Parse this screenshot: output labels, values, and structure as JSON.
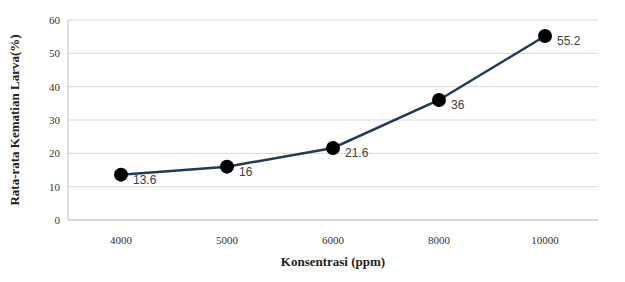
{
  "chart_data": {
    "type": "line",
    "x_label": "Konsentrasi (ppm)",
    "y_label": "Rata-rata Kematian Larva(%)",
    "categories": [
      "4000",
      "5000",
      "6000",
      "8000",
      "10000"
    ],
    "values": [
      13.6,
      16,
      21.6,
      36,
      55.2
    ],
    "color": "#1f3a5a",
    "marker": "circle",
    "ylim": [
      0,
      60
    ],
    "yticks": [
      0,
      10,
      20,
      30,
      40,
      50,
      60
    ],
    "grid": true,
    "data_labels": true
  }
}
